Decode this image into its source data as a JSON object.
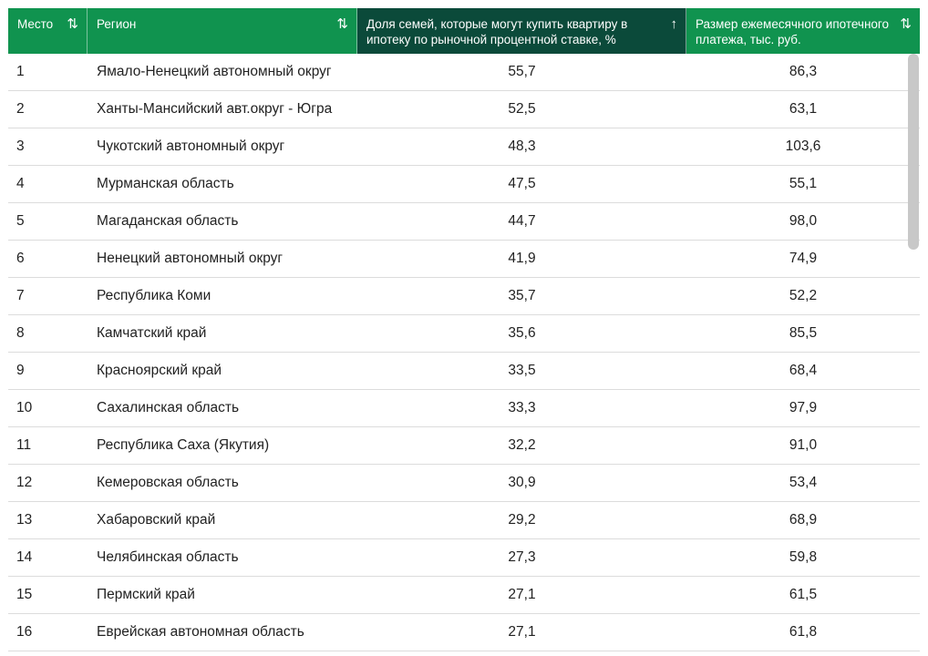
{
  "colors": {
    "header_bg": "#10934f",
    "header_active_bg": "#0b4a3a",
    "header_text": "#ffffff",
    "row_divider": "#dcdcdc",
    "scrollbar_thumb": "#c8c8c8"
  },
  "table": {
    "columns": [
      {
        "label": "Место",
        "sort_icon": "sort-both-icon",
        "sort_glyph": "⇅",
        "active": false
      },
      {
        "label": "Регион",
        "sort_icon": "sort-both-icon",
        "sort_glyph": "⇅",
        "active": false
      },
      {
        "label": "Доля семей, которые могут купить квартиру в ипотеку по рыночной процентной ставке, %",
        "sort_icon": "sort-ascending-icon",
        "sort_glyph": "↑",
        "active": true
      },
      {
        "label": "Размер ежемесячного ипотечного платежа, тыс. руб.",
        "sort_icon": "sort-both-icon",
        "sort_glyph": "⇅",
        "active": false
      }
    ],
    "rows": [
      {
        "place": "1",
        "region": "Ямало-Ненецкий автономный округ",
        "share": "55,7",
        "payment": "86,3"
      },
      {
        "place": "2",
        "region": "Ханты-Мансийский авт.округ - Югра",
        "share": "52,5",
        "payment": "63,1"
      },
      {
        "place": "3",
        "region": "Чукотский автономный округ",
        "share": "48,3",
        "payment": "103,6"
      },
      {
        "place": "4",
        "region": "Мурманская область",
        "share": "47,5",
        "payment": "55,1"
      },
      {
        "place": "5",
        "region": "Магаданская область",
        "share": "44,7",
        "payment": "98,0"
      },
      {
        "place": "6",
        "region": "Ненецкий автономный округ",
        "share": "41,9",
        "payment": "74,9"
      },
      {
        "place": "7",
        "region": "Республика Коми",
        "share": "35,7",
        "payment": "52,2"
      },
      {
        "place": "8",
        "region": "Камчатский край",
        "share": "35,6",
        "payment": "85,5"
      },
      {
        "place": "9",
        "region": "Красноярский край",
        "share": "33,5",
        "payment": "68,4"
      },
      {
        "place": "10",
        "region": "Сахалинская область",
        "share": "33,3",
        "payment": "97,9"
      },
      {
        "place": "11",
        "region": "Республика Саха (Якутия)",
        "share": "32,2",
        "payment": "91,0"
      },
      {
        "place": "12",
        "region": "Кемеровская область",
        "share": "30,9",
        "payment": "53,4"
      },
      {
        "place": "13",
        "region": "Хабаровский край",
        "share": "29,2",
        "payment": "68,9"
      },
      {
        "place": "14",
        "region": "Челябинская область",
        "share": "27,3",
        "payment": "59,8"
      },
      {
        "place": "15",
        "region": "Пермский край",
        "share": "27,1",
        "payment": "61,5"
      },
      {
        "place": "16",
        "region": "Еврейская автономная область",
        "share": "27,1",
        "payment": "61,8"
      }
    ]
  }
}
